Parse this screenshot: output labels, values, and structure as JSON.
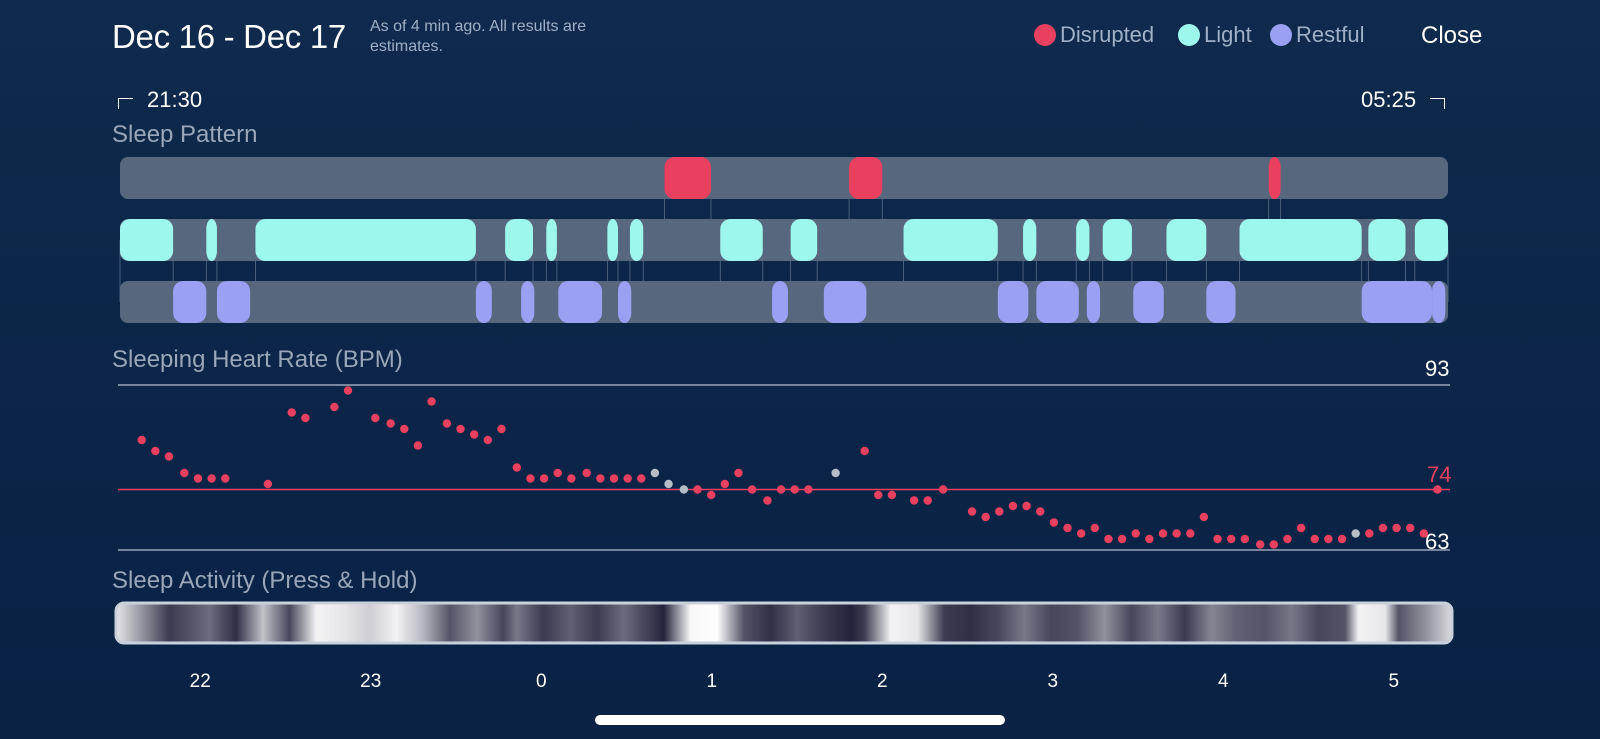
{
  "header": {
    "date_range": "Dec 16 - Dec 17",
    "subtitle": "As of 4 min ago. All results are estimates.",
    "legend": [
      {
        "label": "Disrupted",
        "color": "#e8405e"
      },
      {
        "label": "Light",
        "color": "#9ef7ec"
      },
      {
        "label": "Restful",
        "color": "#9aa0f2"
      }
    ],
    "close_label": "Close"
  },
  "time_range": {
    "start": "21:30",
    "end": "05:25"
  },
  "sleep_pattern": {
    "title": "Sleep Pattern",
    "colors": {
      "disrupted": "#e8405e",
      "light": "#9ef7ec",
      "restful": "#9aa0f2",
      "track": "#56677e"
    },
    "disrupted": [
      [
        0.41,
        0.445
      ],
      [
        0.549,
        0.574
      ],
      [
        0.865,
        0.874
      ]
    ],
    "light": [
      [
        0.0,
        0.04
      ],
      [
        0.065,
        0.073
      ],
      [
        0.102,
        0.268
      ],
      [
        0.29,
        0.311
      ],
      [
        0.321,
        0.329
      ],
      [
        0.367,
        0.375
      ],
      [
        0.384,
        0.394
      ],
      [
        0.452,
        0.484
      ],
      [
        0.505,
        0.525
      ],
      [
        0.59,
        0.661
      ],
      [
        0.68,
        0.69
      ],
      [
        0.72,
        0.73
      ],
      [
        0.74,
        0.762
      ],
      [
        0.788,
        0.818
      ],
      [
        0.843,
        0.935
      ],
      [
        0.975,
        1.0
      ],
      [
        0.94,
        0.968
      ]
    ],
    "restful": [
      [
        0.04,
        0.065
      ],
      [
        0.073,
        0.098
      ],
      [
        0.268,
        0.28
      ],
      [
        0.302,
        0.312
      ],
      [
        0.33,
        0.363
      ],
      [
        0.375,
        0.385
      ],
      [
        0.491,
        0.503
      ],
      [
        0.53,
        0.562
      ],
      [
        0.661,
        0.684
      ],
      [
        0.69,
        0.722
      ],
      [
        0.728,
        0.738
      ],
      [
        0.763,
        0.786
      ],
      [
        0.818,
        0.84
      ],
      [
        0.935,
        0.988
      ],
      [
        0.988,
        0.998
      ]
    ]
  },
  "heart_rate": {
    "title": "Sleeping Heart Rate (BPM)",
    "max_label": "93",
    "avg_label": "74",
    "min_label": "63",
    "ymin": 63,
    "ymax": 93,
    "avg": 74,
    "colors": {
      "point": "#e8405e",
      "gray": "#b7bdc6",
      "line": "#9aa6b9",
      "avg_line": "#e8405e"
    },
    "points": [
      [
        -0.49,
        83
      ],
      [
        -0.41,
        81
      ],
      [
        -0.33,
        80
      ],
      [
        -0.24,
        77
      ],
      [
        -0.16,
        76
      ],
      [
        -0.08,
        76
      ],
      [
        0.0,
        76
      ],
      [
        0.25,
        75
      ],
      [
        0.39,
        88
      ],
      [
        0.47,
        87
      ],
      [
        0.64,
        89
      ],
      [
        0.72,
        92
      ],
      [
        0.88,
        87
      ],
      [
        0.97,
        86
      ],
      [
        1.05,
        85
      ],
      [
        1.13,
        82
      ],
      [
        1.21,
        90
      ],
      [
        1.3,
        86
      ],
      [
        1.38,
        85
      ],
      [
        1.46,
        84
      ],
      [
        1.54,
        83
      ],
      [
        1.62,
        85
      ],
      [
        1.71,
        78
      ],
      [
        1.79,
        76
      ],
      [
        1.87,
        76
      ],
      [
        1.95,
        77
      ],
      [
        2.03,
        76
      ],
      [
        2.12,
        77
      ],
      [
        2.2,
        76
      ],
      [
        2.28,
        76
      ],
      [
        2.36,
        76
      ],
      [
        2.44,
        76
      ],
      [
        2.52,
        77,
        "gray"
      ],
      [
        2.6,
        75,
        "gray"
      ],
      [
        2.69,
        74,
        "gray"
      ],
      [
        2.77,
        74
      ],
      [
        2.85,
        73
      ],
      [
        2.93,
        75
      ],
      [
        3.01,
        77
      ],
      [
        3.09,
        74
      ],
      [
        3.18,
        72
      ],
      [
        3.26,
        74
      ],
      [
        3.34,
        74
      ],
      [
        3.42,
        74
      ],
      [
        3.58,
        77,
        "gray"
      ],
      [
        3.75,
        81
      ],
      [
        3.83,
        73
      ],
      [
        3.91,
        73
      ],
      [
        4.04,
        72
      ],
      [
        4.12,
        72
      ],
      [
        4.21,
        74
      ],
      [
        4.38,
        70
      ],
      [
        4.46,
        69
      ],
      [
        4.54,
        70
      ],
      [
        4.62,
        71
      ],
      [
        4.7,
        71
      ],
      [
        4.78,
        70
      ],
      [
        4.86,
        68
      ],
      [
        4.94,
        67
      ],
      [
        5.02,
        66
      ],
      [
        5.1,
        67
      ],
      [
        5.18,
        65
      ],
      [
        5.26,
        65
      ],
      [
        5.34,
        66
      ],
      [
        5.42,
        65
      ],
      [
        5.5,
        66
      ],
      [
        5.58,
        66
      ],
      [
        5.66,
        66
      ],
      [
        5.74,
        69
      ],
      [
        5.82,
        65
      ],
      [
        5.9,
        65
      ],
      [
        5.98,
        65
      ],
      [
        6.07,
        64
      ],
      [
        6.15,
        64
      ],
      [
        6.23,
        65
      ],
      [
        6.31,
        67
      ],
      [
        6.39,
        65
      ],
      [
        6.47,
        65
      ],
      [
        6.55,
        65
      ],
      [
        6.63,
        66,
        "gray"
      ],
      [
        6.71,
        66
      ],
      [
        6.79,
        67
      ],
      [
        6.87,
        67
      ],
      [
        6.95,
        67
      ],
      [
        7.03,
        66
      ],
      [
        7.11,
        74
      ]
    ]
  },
  "sleep_activity": {
    "title": "Sleep Activity (Press & Hold)",
    "stops": [
      [
        0.0,
        0.9
      ],
      [
        0.02,
        0.55
      ],
      [
        0.04,
        0.2
      ],
      [
        0.07,
        0.4
      ],
      [
        0.09,
        0.15
      ],
      [
        0.11,
        0.75
      ],
      [
        0.13,
        0.25
      ],
      [
        0.15,
        0.95
      ],
      [
        0.17,
        0.9
      ],
      [
        0.19,
        0.8
      ],
      [
        0.21,
        0.95
      ],
      [
        0.23,
        0.7
      ],
      [
        0.25,
        0.3
      ],
      [
        0.27,
        0.55
      ],
      [
        0.29,
        0.25
      ],
      [
        0.3,
        0.45
      ],
      [
        0.32,
        0.2
      ],
      [
        0.34,
        0.35
      ],
      [
        0.36,
        0.2
      ],
      [
        0.38,
        0.4
      ],
      [
        0.41,
        0.1
      ],
      [
        0.43,
        0.97
      ],
      [
        0.45,
        1.0
      ],
      [
        0.47,
        0.3
      ],
      [
        0.49,
        0.15
      ],
      [
        0.51,
        0.35
      ],
      [
        0.53,
        0.2
      ],
      [
        0.55,
        0.1
      ],
      [
        0.56,
        0.2
      ],
      [
        0.58,
        0.95
      ],
      [
        0.6,
        0.9
      ],
      [
        0.62,
        0.2
      ],
      [
        0.64,
        0.15
      ],
      [
        0.66,
        0.25
      ],
      [
        0.68,
        0.45
      ],
      [
        0.7,
        0.25
      ],
      [
        0.72,
        0.3
      ],
      [
        0.74,
        0.55
      ],
      [
        0.76,
        0.25
      ],
      [
        0.78,
        0.45
      ],
      [
        0.8,
        0.2
      ],
      [
        0.82,
        0.5
      ],
      [
        0.84,
        0.35
      ],
      [
        0.86,
        0.3
      ],
      [
        0.88,
        0.45
      ],
      [
        0.9,
        0.25
      ],
      [
        0.92,
        0.3
      ],
      [
        0.93,
        0.95
      ],
      [
        0.95,
        0.9
      ],
      [
        0.96,
        0.3
      ],
      [
        0.98,
        0.55
      ],
      [
        1.0,
        0.85
      ]
    ]
  },
  "x_axis": {
    "ticks": [
      {
        "label": "22",
        "t": 0.5
      },
      {
        "label": "23",
        "t": 1.5
      },
      {
        "label": "0",
        "t": 2.5
      },
      {
        "label": "1",
        "t": 3.5
      },
      {
        "label": "2",
        "t": 4.5
      },
      {
        "label": "3",
        "t": 5.5
      },
      {
        "label": "4",
        "t": 6.5
      },
      {
        "label": "5",
        "t": 7.5
      }
    ]
  }
}
